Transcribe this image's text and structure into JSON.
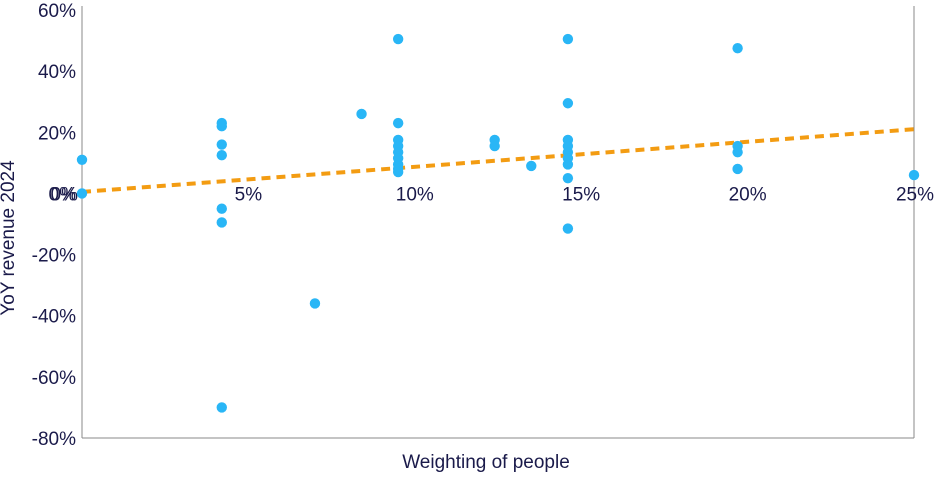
{
  "chart_data": {
    "type": "scatter",
    "xlabel": "Weighting of people",
    "ylabel": "YoY revenue 2024",
    "xlim": [
      0,
      25
    ],
    "ylim": [
      -80,
      60
    ],
    "x_ticks": [
      0,
      5,
      10,
      15,
      20,
      25
    ],
    "x_tick_labels": [
      "0%",
      "5%",
      "10%",
      "15%",
      "20%",
      "25%"
    ],
    "y_ticks": [
      60,
      40,
      20,
      0,
      -20,
      -40,
      -60,
      -80
    ],
    "y_tick_labels": [
      "60%",
      "40%",
      "20%",
      "0%",
      "-20%",
      "-40%",
      "-60%",
      "-80%"
    ],
    "grid": false,
    "point_color": "#29b6f6",
    "trend_color": "#f39c12",
    "points": [
      {
        "x": 0,
        "y": 11
      },
      {
        "x": 0,
        "y": 0
      },
      {
        "x": 4.2,
        "y": 23
      },
      {
        "x": 4.2,
        "y": 22
      },
      {
        "x": 4.2,
        "y": 16
      },
      {
        "x": 4.2,
        "y": 12.5
      },
      {
        "x": 4.2,
        "y": -5
      },
      {
        "x": 4.2,
        "y": -9.5
      },
      {
        "x": 4.2,
        "y": -70
      },
      {
        "x": 7,
        "y": -36
      },
      {
        "x": 8.4,
        "y": 26
      },
      {
        "x": 9.5,
        "y": 50.5
      },
      {
        "x": 9.5,
        "y": 23
      },
      {
        "x": 9.5,
        "y": 17.5
      },
      {
        "x": 9.5,
        "y": 15.5
      },
      {
        "x": 9.5,
        "y": 13.5
      },
      {
        "x": 9.5,
        "y": 11.5
      },
      {
        "x": 9.5,
        "y": 9.5
      },
      {
        "x": 9.5,
        "y": 8
      },
      {
        "x": 9.5,
        "y": 7
      },
      {
        "x": 12.4,
        "y": 17.5
      },
      {
        "x": 12.4,
        "y": 15.5
      },
      {
        "x": 13.5,
        "y": 9
      },
      {
        "x": 14.6,
        "y": 50.5
      },
      {
        "x": 14.6,
        "y": 29.5
      },
      {
        "x": 14.6,
        "y": 17.5
      },
      {
        "x": 14.6,
        "y": 15.5
      },
      {
        "x": 14.6,
        "y": 13.5
      },
      {
        "x": 14.6,
        "y": 11.5
      },
      {
        "x": 14.6,
        "y": 9.5
      },
      {
        "x": 14.6,
        "y": 5
      },
      {
        "x": 14.6,
        "y": -11.5
      },
      {
        "x": 19.7,
        "y": 47.5
      },
      {
        "x": 19.7,
        "y": 15.5
      },
      {
        "x": 19.7,
        "y": 13.5
      },
      {
        "x": 19.7,
        "y": 8
      },
      {
        "x": 25,
        "y": 6
      }
    ],
    "trendline": [
      {
        "x": 0,
        "y": 0.5
      },
      {
        "x": 25,
        "y": 21
      }
    ]
  }
}
